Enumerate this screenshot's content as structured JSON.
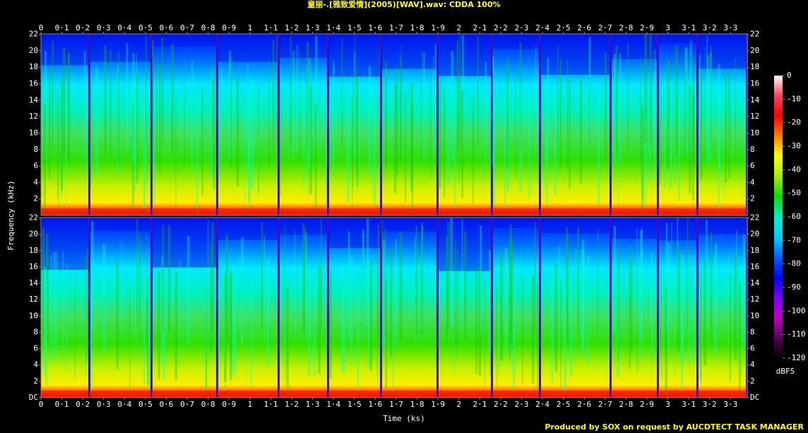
{
  "chart_data": {
    "type": "spectrogram",
    "title": "童丽-.[雅致爱情](2005)[WAV].wav: CDDA 100%",
    "x_label": "Time (ks)",
    "y_label": "Frequency (kHz)",
    "colorbar_label": "dBFS",
    "footer": "Produced by SOX on request by AUCDTECT TASK MANAGER",
    "channels": 2,
    "xlim": [
      0,
      3.38
    ],
    "xticks": [
      0,
      {
        "value": 0.1,
        "label": "0·1"
      },
      {
        "value": 0.2,
        "label": "0·2"
      },
      {
        "value": 0.3,
        "label": "0·3"
      },
      {
        "value": 0.4,
        "label": "0·4"
      },
      {
        "value": 0.5,
        "label": "0·5"
      },
      {
        "value": 0.6,
        "label": "0·6"
      },
      {
        "value": 0.7,
        "label": "0·7"
      },
      {
        "value": 0.8,
        "label": "0·8"
      },
      {
        "value": 0.9,
        "label": "0·9"
      },
      1,
      {
        "value": 1.1,
        "label": "1·1"
      },
      {
        "value": 1.2,
        "label": "1·2"
      },
      {
        "value": 1.3,
        "label": "1·3"
      },
      {
        "value": 1.4,
        "label": "1·4"
      },
      {
        "value": 1.5,
        "label": "1·5"
      },
      {
        "value": 1.6,
        "label": "1·6"
      },
      {
        "value": 1.7,
        "label": "1·7"
      },
      {
        "value": 1.8,
        "label": "1·8"
      },
      {
        "value": 1.9,
        "label": "1·9"
      },
      2,
      {
        "value": 2.1,
        "label": "2·1"
      },
      {
        "value": 2.2,
        "label": "2·2"
      },
      {
        "value": 2.3,
        "label": "2·3"
      },
      {
        "value": 2.4,
        "label": "2·4"
      },
      {
        "value": 2.5,
        "label": "2·5"
      },
      {
        "value": 2.6,
        "label": "2·6"
      },
      {
        "value": 2.7,
        "label": "2·7"
      },
      {
        "value": 2.8,
        "label": "2·8"
      },
      {
        "value": 2.9,
        "label": "2·9"
      },
      3,
      {
        "value": 3.1,
        "label": "3·1"
      },
      {
        "value": 3.2,
        "label": "3·2"
      },
      {
        "value": 3.3,
        "label": "3·3"
      }
    ],
    "ylim": [
      0,
      22.05
    ],
    "yticks": [
      {
        "value": 0,
        "label": "DC"
      },
      2,
      4,
      6,
      8,
      10,
      12,
      14,
      16,
      18,
      20,
      22
    ],
    "zlim": [
      -120,
      0
    ],
    "zticks": [
      0,
      -10,
      -20,
      -30,
      -40,
      -50,
      -60,
      -70,
      -80,
      -90,
      -100,
      -110,
      -120
    ],
    "colormap": [
      "#000000",
      "#5a005a",
      "#c000c0",
      "#7a00ff",
      "#0000ff",
      "#0060ff",
      "#00d0ff",
      "#00f0c0",
      "#00e000",
      "#a0f000",
      "#ffff00",
      "#ff8000",
      "#ff0000",
      "#ff4060",
      "#ffffff"
    ]
  }
}
